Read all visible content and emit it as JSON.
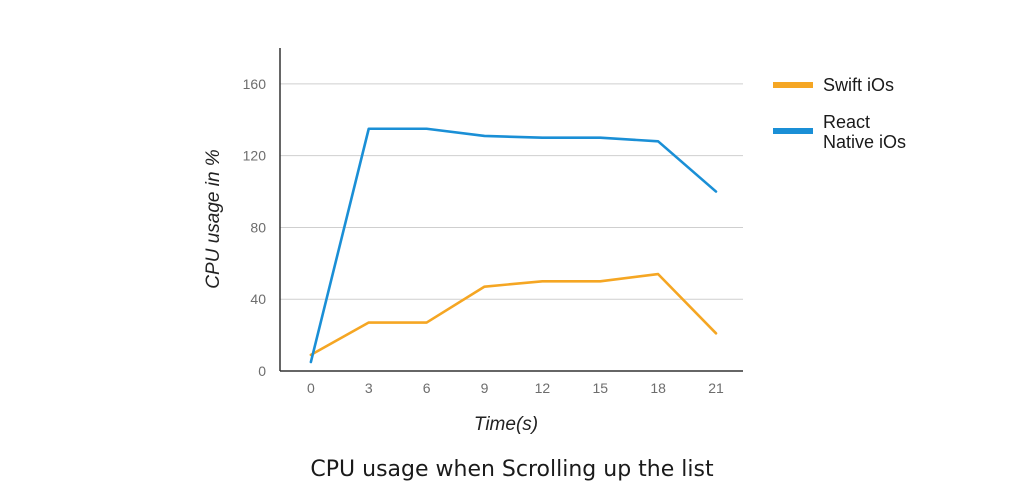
{
  "chart_data": {
    "type": "line",
    "title": "CPU usage when Scrolling up the list",
    "xlabel": "Time(s)",
    "ylabel": "CPU usage in %",
    "x": [
      0,
      3,
      6,
      9,
      12,
      15,
      18,
      21
    ],
    "xlim": [
      -1.6,
      22.4
    ],
    "ylim": [
      0,
      180
    ],
    "yticks": [
      0,
      40,
      80,
      120,
      160
    ],
    "grid": true,
    "legend_position": "right",
    "series": [
      {
        "name": "Swift iOs",
        "color": "#f5a623",
        "values": [
          9,
          27,
          27,
          47,
          50,
          50,
          54,
          21
        ]
      },
      {
        "name": "React Native iOs",
        "legend_lines": [
          "React",
          "Native iOs"
        ],
        "color": "#1a8fd6",
        "values": [
          5,
          135,
          135,
          131,
          130,
          130,
          128,
          100
        ]
      }
    ]
  }
}
